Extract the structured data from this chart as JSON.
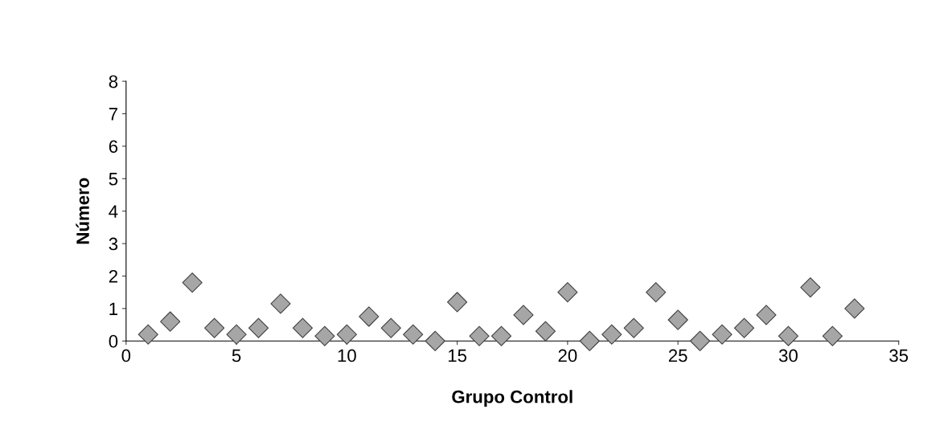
{
  "chart_data": {
    "type": "scatter",
    "xlabel": "Grupo Control",
    "ylabel": "Número",
    "x": [
      1,
      2,
      3,
      4,
      5,
      6,
      7,
      8,
      9,
      10,
      11,
      12,
      13,
      14,
      15,
      16,
      17,
      18,
      19,
      20,
      21,
      22,
      23,
      24,
      25,
      26,
      27,
      28,
      29,
      30,
      31,
      32,
      33
    ],
    "values": [
      0.2,
      0.6,
      1.8,
      0.4,
      0.2,
      0.4,
      1.15,
      0.4,
      0.15,
      0.2,
      0.75,
      0.4,
      0.2,
      0,
      1.2,
      0.15,
      0.15,
      0.8,
      0.3,
      1.5,
      0,
      0.2,
      0.4,
      1.5,
      0.65,
      0,
      0.2,
      0.4,
      0.8,
      0.15,
      1.65,
      0.15,
      1.0
    ],
    "color": "#a6a6a6",
    "marker": "diamond",
    "xlim": [
      0,
      35
    ],
    "xticks": [
      0,
      5,
      10,
      15,
      20,
      25,
      30,
      35
    ],
    "ylim": [
      0,
      8
    ],
    "yticks": [
      0,
      1,
      2,
      3,
      4,
      5,
      6,
      7,
      8
    ],
    "grid": false,
    "legend": false
  }
}
